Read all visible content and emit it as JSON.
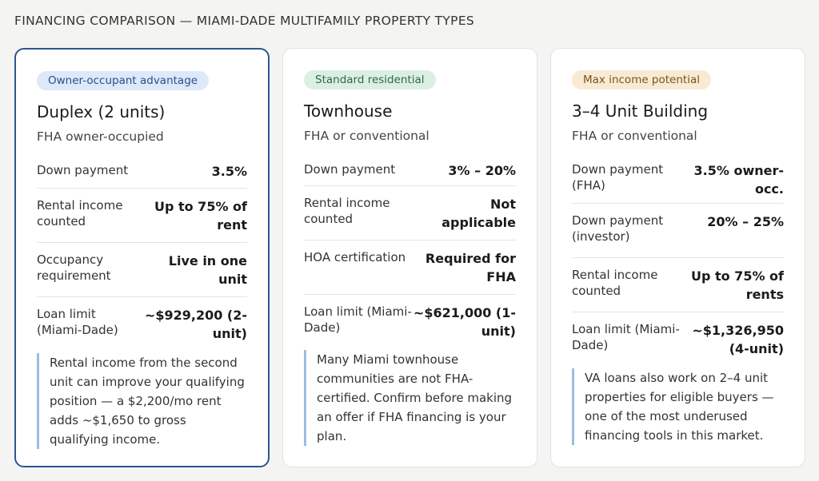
{
  "page_title": "FINANCING COMPARISON — MIAMI-DADE MULTIFAMILY PROPERTY TYPES",
  "colors": {
    "featured_border": "#2c5592",
    "badge_blue_bg": "#dde9f8",
    "badge_blue_text": "#27508e",
    "badge_green_bg": "#dcefe4",
    "badge_green_text": "#2c6a45",
    "badge_tan_bg": "#f8ead4",
    "badge_tan_text": "#7c5519",
    "note_rule": "#9cbde3"
  },
  "cards": [
    {
      "badge": "Owner-occupant advantage",
      "title": "Duplex (2 units)",
      "subtitle": "FHA owner-occupied",
      "rows": [
        {
          "label": "Down payment",
          "value": "3.5%"
        },
        {
          "label": "Rental income counted",
          "value": "Up to 75% of rent"
        },
        {
          "label": "Occupancy requirement",
          "value": "Live in one unit"
        },
        {
          "label": "Loan limit (Miami-Dade)",
          "value": "~$929,200 (2-unit)"
        }
      ],
      "note": "Rental income from the second unit can improve your qualifying position — a $2,200/mo rent adds ~$1,650 to gross qualifying income."
    },
    {
      "badge": "Standard residential",
      "title": "Townhouse",
      "subtitle": "FHA or conventional",
      "rows": [
        {
          "label": "Down payment",
          "value": "3% – 20%"
        },
        {
          "label": "Rental income counted",
          "value": "Not applicable"
        },
        {
          "label": "HOA certification",
          "value": "Required for FHA"
        },
        {
          "label": "Loan limit (Miami-Dade)",
          "value": "~$621,000 (1-unit)"
        }
      ],
      "note": "Many Miami townhouse communities are not FHA-certified. Confirm before making an offer if FHA financing is your plan."
    },
    {
      "badge": "Max income potential",
      "title": "3–4 Unit Building",
      "subtitle": "FHA or conventional",
      "rows": [
        {
          "label": "Down payment (FHA)",
          "value": "3.5% owner-occ."
        },
        {
          "label": "Down payment (investor)",
          "value": "20% – 25%"
        },
        {
          "label": "Rental income counted",
          "value": "Up to 75% of rents"
        },
        {
          "label": "Loan limit (Miami-Dade)",
          "value": "~$1,326,950 (4-unit)"
        }
      ],
      "note": "VA loans also work on 2–4 unit properties for eligible buyers — one of the most underused financing tools in this market."
    }
  ]
}
